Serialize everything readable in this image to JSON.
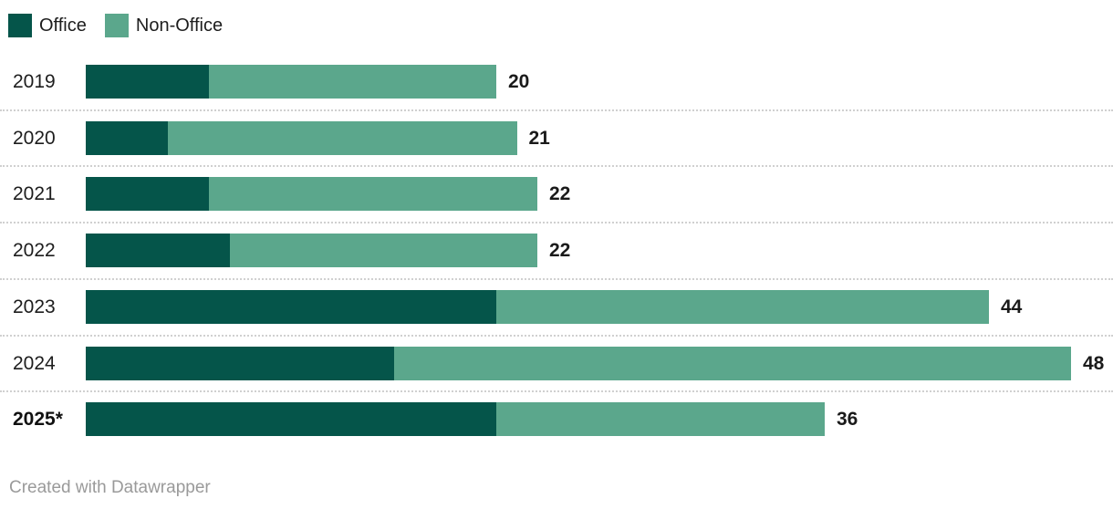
{
  "legend": {
    "items": [
      {
        "label": "Office",
        "color": "#05554A"
      },
      {
        "label": "Non-Office",
        "color": "#5BA78C"
      }
    ]
  },
  "footer": {
    "credit": "Created with Datawrapper"
  },
  "chart_data": {
    "type": "bar",
    "orientation": "horizontal",
    "stacked": true,
    "title": "",
    "categories": [
      "2019",
      "2020",
      "2021",
      "2022",
      "2023",
      "2024",
      "2025*"
    ],
    "series": [
      {
        "name": "Office",
        "color": "#05554A",
        "values": [
          6,
          4,
          6,
          7,
          20,
          15,
          20
        ]
      },
      {
        "name": "Non-Office",
        "color": "#5BA78C",
        "values": [
          14,
          17,
          16,
          15,
          24,
          33,
          16
        ]
      }
    ],
    "totals": [
      20,
      21,
      22,
      22,
      44,
      48,
      36
    ],
    "total_labels": [
      "20",
      "21",
      "22",
      "22",
      "44",
      "48",
      "36"
    ],
    "highlighted_category": "2025*",
    "xlim": [
      0,
      48
    ],
    "grid": false,
    "legend_position": "top-left",
    "row_separators": "dotted"
  }
}
